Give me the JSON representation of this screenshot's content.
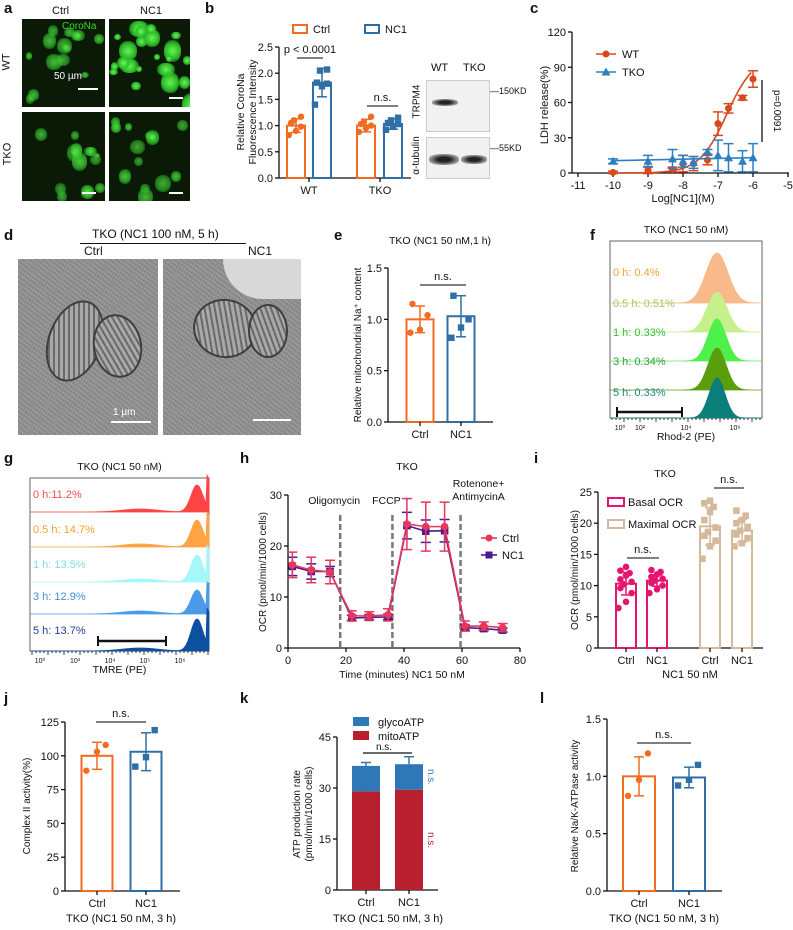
{
  "panel_labels": [
    "a",
    "b",
    "c",
    "d",
    "e",
    "f",
    "g",
    "h",
    "i",
    "j",
    "k",
    "l"
  ],
  "panel_a": {
    "col_labels": [
      "Ctrl",
      "NC1"
    ],
    "row_labels": [
      "WT",
      "TKO"
    ],
    "stain_label": "CoroNa",
    "scale_label": "50 µm",
    "stain_color": "#39d62f"
  },
  "panel_b_blot": {
    "lanes": [
      "WT",
      "TKO"
    ],
    "rows": [
      "TRPM4",
      "α-tubulin"
    ],
    "markers": [
      "150KD",
      "55KD"
    ]
  },
  "panel_d": {
    "title": "TKO (NC1 100 nM, 5 h)",
    "col_labels": [
      "Ctrl",
      "NC1"
    ],
    "scale_label": "1 µm"
  },
  "chart_data": [
    {
      "id": "b",
      "type": "bar",
      "title": "",
      "xlabel": "",
      "ylabel": [
        "Relative CoroNa",
        "Fluorescence Intensity"
      ],
      "ylim": [
        0,
        2.5
      ],
      "yticks": [
        "0.0",
        "0.5",
        "1.0",
        "1.5",
        "2.0",
        "2.5"
      ],
      "xticks": [
        "WT",
        "TKO"
      ],
      "categories": [
        "WT",
        "TKO"
      ],
      "legend": "top",
      "series": [
        {
          "name": "Ctrl",
          "color": "#f26b21",
          "marker": "circle",
          "values": [
            1.0,
            1.0
          ],
          "errors": [
            0.13,
            0.12
          ],
          "points": [
            [
              0.82,
              0.9,
              0.98,
              1.05,
              1.1,
              1.17
            ],
            [
              0.88,
              0.95,
              1.0,
              1.03,
              1.08,
              1.17
            ]
          ]
        },
        {
          "name": "NC1",
          "color": "#2f6fa6",
          "marker": "square",
          "values": [
            1.82,
            1.03
          ],
          "errors": [
            0.27,
            0.1
          ],
          "points": [
            [
              1.4,
              1.75,
              1.8,
              1.82,
              2.05,
              2.07
            ],
            [
              0.92,
              0.98,
              1.03,
              1.05,
              1.1,
              1.15
            ]
          ]
        }
      ],
      "annotations": [
        "p < 0.0001",
        "n.s."
      ]
    },
    {
      "id": "c",
      "type": "line",
      "title": "",
      "xlabel": "Log[NC1](M)",
      "ylabel": "LDH release(%)",
      "xlim": [
        -11,
        -5
      ],
      "ylim": [
        0,
        120
      ],
      "xticks": [
        "-11",
        "-10",
        "-9",
        "-8",
        "-7",
        "-6",
        "-5"
      ],
      "yticks": [
        "0",
        "30",
        "60",
        "90",
        "120"
      ],
      "legend": "top-left",
      "series": [
        {
          "name": "WT",
          "color": "#d9481c",
          "marker": "circle",
          "x": [
            -10,
            -9,
            -8.3,
            -8,
            -7.7,
            -7.3,
            -7,
            -6.7,
            -6.3,
            -6
          ],
          "y": [
            0.5,
            2.5,
            3,
            8,
            8,
            11,
            42,
            55,
            64,
            80
          ],
          "errors": [
            1,
            3,
            2,
            7,
            6,
            4,
            10,
            4,
            2,
            7
          ],
          "fit": "sigmoid"
        },
        {
          "name": "TKO",
          "color": "#2d7fc1",
          "marker": "triangle",
          "x": [
            -10,
            -9,
            -8.3,
            -8,
            -7.7,
            -7.3,
            -7,
            -6.7,
            -6.3,
            -6
          ],
          "y": [
            10,
            10,
            12,
            10,
            9,
            18,
            15,
            13,
            10,
            13
          ],
          "errors": [
            2,
            5,
            8,
            5,
            5,
            2,
            13,
            12,
            9,
            12
          ],
          "fit": "flat"
        }
      ],
      "annotations": [
        "p=0.0091"
      ]
    },
    {
      "id": "e",
      "type": "bar",
      "title": "TKO (NC1 50 nM,1 h)",
      "xlabel": "",
      "ylabel": "Relative mitochondrial Na⁺ content",
      "ylim": [
        0,
        1.5
      ],
      "yticks": [
        "0.0",
        "0.5",
        "1.0",
        "1.5"
      ],
      "xticks": [
        "Ctrl",
        "NC1"
      ],
      "series": [
        {
          "name": "Ctrl",
          "color": "#f26b21",
          "marker": "circle",
          "values": [
            1.0
          ],
          "errors": [
            0.13
          ],
          "points": [
            [
              0.87,
              0.9,
              1.04,
              1.15
            ]
          ]
        },
        {
          "name": "NC1",
          "color": "#2f6fa6",
          "marker": "square",
          "values": [
            1.03
          ],
          "errors": [
            0.2
          ],
          "points": [
            [
              0.82,
              0.92,
              1.0,
              1.23
            ]
          ]
        }
      ],
      "annotations": [
        "n.s."
      ]
    },
    {
      "id": "f",
      "type": "histogram",
      "title": "TKO (NC1 50 nM)",
      "xlabel": "Rhod-2 (PE)",
      "xticks": [
        "10⁰",
        "10²",
        "10⁴",
        "10⁶"
      ],
      "series": [
        {
          "label": "0 h: 0.4%",
          "color": "#f9b989",
          "text_color": "#f5a030"
        },
        {
          "label": "0.5 h: 0.51%",
          "color": "#c5f08c",
          "text_color": "#9fcc55"
        },
        {
          "label": "1 h: 0.33%",
          "color": "#4ef04a",
          "text_color": "#33c033"
        },
        {
          "label": "3 h: 0.34%",
          "color": "#5a9e0c",
          "text_color": "#2ea040"
        },
        {
          "label": "5 h: 0.33%",
          "color": "#0b7f7a",
          "text_color": "#1a8a7a"
        }
      ]
    },
    {
      "id": "g",
      "type": "histogram",
      "title": "TKO (NC1 50 nM)",
      "xlabel": "TMRE (PE)",
      "xticks": [
        "10⁰",
        "10³",
        "10⁴",
        "10⁵",
        "10⁶"
      ],
      "series": [
        {
          "label": "0 h:11.2%",
          "color": "#ff4444",
          "text_color": "#ff4c4c"
        },
        {
          "label": "0.5 h: 14.7%",
          "color": "#ffa444",
          "text_color": "#f5a030"
        },
        {
          "label": "1 h: 13.5%",
          "color": "#a6f7f7",
          "text_color": "#7fdfe8"
        },
        {
          "label": "3 h: 12.9%",
          "color": "#4a9ae8",
          "text_color": "#3f90e0"
        },
        {
          "label": "5 h: 13.7%",
          "color": "#0e4fa0",
          "text_color": "#22409e"
        }
      ]
    },
    {
      "id": "h",
      "type": "line",
      "title": "TKO",
      "xlabel": "Time (minutes) NC1 50 nM",
      "ylabel": "OCR (pmol/min/1000 cells)",
      "xlim": [
        0,
        80
      ],
      "ylim": [
        0,
        30
      ],
      "xticks": [
        "0",
        "20",
        "40",
        "60",
        "80"
      ],
      "yticks": [
        "0",
        "10",
        "20",
        "30"
      ],
      "legend": "right",
      "injections": [
        {
          "time": 18,
          "label": [
            "Oligomycin"
          ]
        },
        {
          "time": 36,
          "label": [
            "FCCP"
          ]
        },
        {
          "time": 59.5,
          "label": [
            "Rotenone+",
            "AntimycinA"
          ]
        }
      ],
      "series": [
        {
          "name": "Ctrl",
          "color": "#e8375a",
          "marker": "circle",
          "x": [
            1.5,
            8,
            14.5,
            22,
            28,
            34.5,
            41,
            47.5,
            54,
            61,
            67.5,
            74
          ],
          "y": [
            16.3,
            15.3,
            14.9,
            6.3,
            6.3,
            6.5,
            24.3,
            23.8,
            23.8,
            4.3,
            4.3,
            4.0
          ],
          "errors": [
            2.5,
            2.5,
            2.3,
            1,
            0.8,
            1.2,
            5,
            4.8,
            4.8,
            1,
            0.8,
            0.8
          ]
        },
        {
          "name": "NC1",
          "color": "#4b1a8c",
          "marker": "square",
          "x": [
            1.5,
            8,
            14.5,
            22,
            28,
            34.5,
            41,
            47.5,
            54,
            61,
            67.5,
            74
          ],
          "y": [
            16,
            15,
            15,
            5.9,
            6,
            6.1,
            24,
            22.9,
            23,
            4,
            3.8,
            3.5
          ],
          "errors": [
            1.8,
            1.5,
            1,
            0.5,
            0.5,
            0.5,
            2.6,
            2.2,
            2.2,
            0.5,
            0.4,
            0.4
          ]
        }
      ]
    },
    {
      "id": "i",
      "type": "bar",
      "title": "TKO",
      "xlabel": "NC1 50 nM",
      "ylabel": "OCR (pmol/min/1000 cells)",
      "ylim": [
        0,
        25
      ],
      "yticks": [
        "0",
        "5",
        "10",
        "15",
        "20",
        "25"
      ],
      "xticks": [
        "Ctrl",
        "NC1",
        "Ctrl",
        "NC1"
      ],
      "categories": [
        "Ctrl",
        "NC1"
      ],
      "legend": "top-left",
      "series": [
        {
          "name": "Basal OCR",
          "color": "#e5156f",
          "marker": "circle",
          "values": [
            10.3,
            10.8
          ],
          "errors": [
            1.8,
            0.9
          ],
          "points": [
            [
              6.4,
              7.4,
              8.8,
              9.6,
              10.2,
              10.6,
              11.0,
              11.6,
              12.0,
              12.4,
              13.0
            ],
            [
              8.8,
              9.4,
              10.0,
              10.4,
              10.8,
              11.1,
              11.4,
              11.8,
              12.2,
              12.5
            ]
          ]
        },
        {
          "name": "Maximal OCR",
          "color": "#d4b99a",
          "marker": "square",
          "values": [
            19.5,
            18.8
          ],
          "errors": [
            3.0,
            1.8
          ],
          "points": [
            [
              14.3,
              16.3,
              17.2,
              18.0,
              18.6,
              19.3,
              20.5,
              21.8,
              22.6,
              23.2,
              23.6
            ],
            [
              16.3,
              16.8,
              17.6,
              18.2,
              18.8,
              19.4,
              20.0,
              20.5,
              21.2,
              22.0
            ]
          ]
        }
      ],
      "annotations": [
        "n.s.",
        "n.s."
      ]
    },
    {
      "id": "j",
      "type": "bar",
      "title": "",
      "xlabel": "TKO (NC1 50 nM, 3 h)",
      "ylabel": "Complex II activity(%)",
      "ylim": [
        0,
        125
      ],
      "yticks": [
        "0",
        "25",
        "50",
        "75",
        "100",
        "125"
      ],
      "xticks": [
        "Ctrl",
        "NC1"
      ],
      "series": [
        {
          "name": "Ctrl",
          "color": "#f26b21",
          "marker": "circle",
          "values": [
            100
          ],
          "errors": [
            10
          ],
          "points": [
            [
              89,
              103,
              108
            ]
          ]
        },
        {
          "name": "NC1",
          "color": "#2f6fa6",
          "marker": "square",
          "values": [
            103
          ],
          "errors": [
            14
          ],
          "points": [
            [
              92,
              99,
              119
            ]
          ]
        }
      ],
      "annotations": [
        "n.s."
      ]
    },
    {
      "id": "k",
      "type": "stacked-bar",
      "title": "",
      "xlabel": "TKO (NC1 50 nM, 3 h)",
      "ylabel": [
        "ATP production rate",
        "(pmol/min/1000 cells)"
      ],
      "ylim": [
        0,
        45
      ],
      "yticks": [
        "0",
        "15",
        "30",
        "45"
      ],
      "xticks": [
        "Ctrl",
        "NC1"
      ],
      "categories": [
        "Ctrl",
        "NC1"
      ],
      "legend": "top",
      "series": [
        {
          "name": "mitoATP",
          "color": "#b8202f",
          "values": [
            29,
            29.5
          ],
          "errors": [
            2.5,
            1.2
          ]
        },
        {
          "name": "glycoATP",
          "color": "#2f78b8",
          "values": [
            7.5,
            7.5
          ],
          "errors": [
            1,
            2.2
          ]
        }
      ],
      "annotations": [
        "n.s.",
        "n.s.",
        "n.s."
      ]
    },
    {
      "id": "l",
      "type": "bar",
      "title": "",
      "xlabel": "TKO (NC1 50 nM, 3 h)",
      "ylabel": "Relative Na/K-ATPase activity",
      "ylim": [
        0,
        1.5
      ],
      "yticks": [
        "0.0",
        "0.5",
        "1.0",
        "1.5"
      ],
      "xticks": [
        "Ctrl",
        "NC1"
      ],
      "series": [
        {
          "name": "Ctrl",
          "color": "#f26b21",
          "marker": "circle",
          "values": [
            1.0
          ],
          "errors": [
            0.17
          ],
          "points": [
            [
              0.83,
              0.97,
              1.2
            ]
          ]
        },
        {
          "name": "NC1",
          "color": "#2f6fa6",
          "marker": "square",
          "values": [
            0.99
          ],
          "errors": [
            0.09
          ],
          "points": [
            [
              0.92,
              0.97,
              1.1
            ]
          ]
        }
      ],
      "annotations": [
        "n.s."
      ]
    }
  ]
}
